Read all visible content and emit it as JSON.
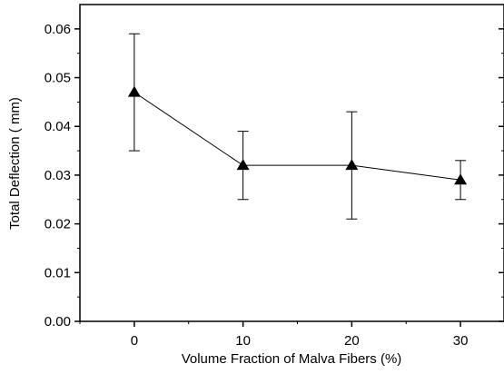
{
  "chart_data": {
    "type": "scatter",
    "title": "",
    "xlabel": "Volume Fraction of Malva Fibers (%)",
    "ylabel": "Total Deflection ( mm)",
    "xlim": [
      -5,
      34
    ],
    "ylim": [
      0,
      0.065
    ],
    "xticks": [
      0,
      10,
      20,
      30
    ],
    "xtick_labels": [
      "0",
      "10",
      "20",
      "30"
    ],
    "yticks": [
      0,
      0.01,
      0.02,
      0.03,
      0.04,
      0.05,
      0.06
    ],
    "ytick_labels": [
      "0.00",
      "0.01",
      "0.02",
      "0.03",
      "0.04",
      "0.05",
      "0.06"
    ],
    "grid": false,
    "legend": "none",
    "marker": "filled-triangle",
    "line": "solid",
    "color": "#000000",
    "series": [
      {
        "x": [
          0,
          10,
          20,
          30
        ],
        "y": [
          0.047,
          0.032,
          0.032,
          0.029
        ],
        "err_upper": [
          0.059,
          0.039,
          0.043,
          0.033
        ],
        "err_lower": [
          0.035,
          0.025,
          0.021,
          0.025
        ]
      }
    ]
  }
}
